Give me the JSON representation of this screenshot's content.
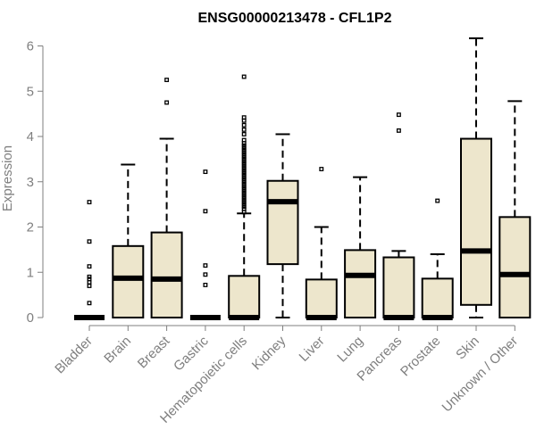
{
  "chart_data": {
    "type": "boxplot",
    "title": "ENSG00000213478 - CFL1P2",
    "xlabel": "",
    "ylabel": "Expression",
    "ylim": [
      0,
      6.2
    ],
    "yticks": [
      0,
      1,
      2,
      3,
      4,
      5,
      6
    ],
    "grid": false,
    "box_color": "#ede6cc",
    "categories": [
      "Bladder",
      "Brain",
      "Breast",
      "Gastric",
      "Hematopoietic cells",
      "Kidney",
      "Liver",
      "Lung",
      "Pancreas",
      "Prostate",
      "Skin",
      "Unknown / Other"
    ],
    "boxes": [
      {
        "whisker_low": 0,
        "q1": 0,
        "median": 0,
        "q3": 0,
        "whisker_high": 0,
        "outliers": [
          0.32,
          0.7,
          0.78,
          0.85,
          0.9,
          1.13,
          1.68,
          2.55
        ]
      },
      {
        "whisker_low": 0,
        "q1": 0,
        "median": 0.87,
        "q3": 1.58,
        "whisker_high": 3.38,
        "outliers": []
      },
      {
        "whisker_low": 0,
        "q1": 0,
        "median": 0.85,
        "q3": 1.88,
        "whisker_high": 3.95,
        "outliers": [
          4.75,
          5.25
        ]
      },
      {
        "whisker_low": 0,
        "q1": 0,
        "median": 0,
        "q3": 0,
        "whisker_high": 0,
        "outliers": [
          0.72,
          0.95,
          1.15,
          2.35,
          3.22
        ]
      },
      {
        "whisker_low": 0,
        "q1": 0,
        "median": 0,
        "q3": 0.92,
        "whisker_high": 2.3,
        "outliers": [
          2.33,
          2.4,
          2.45,
          2.5,
          2.55,
          2.6,
          2.65,
          2.7,
          2.75,
          2.8,
          2.85,
          2.9,
          2.95,
          3.0,
          3.05,
          3.1,
          3.15,
          3.2,
          3.25,
          3.3,
          3.35,
          3.4,
          3.45,
          3.5,
          3.55,
          3.6,
          3.65,
          3.7,
          3.75,
          3.8,
          3.85,
          3.92,
          4.05,
          4.15,
          4.25,
          4.35,
          4.42,
          5.32
        ]
      },
      {
        "whisker_low": 0,
        "q1": 1.18,
        "median": 2.56,
        "q3": 3.02,
        "whisker_high": 4.05,
        "outliers": []
      },
      {
        "whisker_low": 0,
        "q1": 0,
        "median": 0,
        "q3": 0.84,
        "whisker_high": 2.0,
        "outliers": [
          3.28
        ]
      },
      {
        "whisker_low": 0,
        "q1": 0,
        "median": 0.93,
        "q3": 1.49,
        "whisker_high": 3.1,
        "outliers": []
      },
      {
        "whisker_low": 0,
        "q1": 0,
        "median": 0,
        "q3": 1.33,
        "whisker_high": 1.47,
        "outliers": [
          4.13,
          4.48
        ]
      },
      {
        "whisker_low": 0,
        "q1": 0,
        "median": 0,
        "q3": 0.86,
        "whisker_high": 1.4,
        "outliers": [
          2.58
        ]
      },
      {
        "whisker_low": 0,
        "q1": 0.28,
        "median": 1.47,
        "q3": 3.95,
        "whisker_high": 6.17,
        "outliers": []
      },
      {
        "whisker_low": 0,
        "q1": 0,
        "median": 0.95,
        "q3": 2.22,
        "whisker_high": 4.78,
        "outliers": []
      }
    ]
  }
}
